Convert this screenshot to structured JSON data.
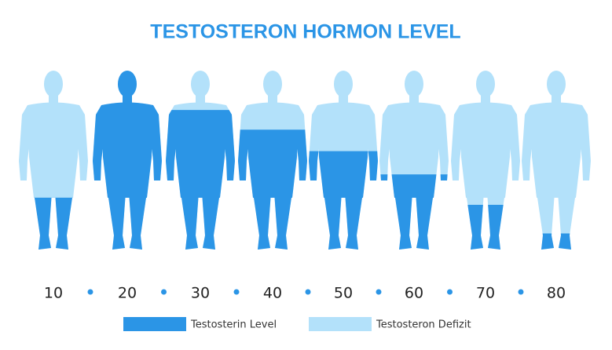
{
  "title": "TESTOSTERON HORMON LEVEL",
  "figures": [
    {
      "label": 10,
      "level": 29
    },
    {
      "label": 20,
      "level": 100
    },
    {
      "label": 30,
      "level": 78
    },
    {
      "label": 40,
      "level": 67
    },
    {
      "label": 50,
      "level": 55
    },
    {
      "label": 60,
      "level": 42
    },
    {
      "label": 70,
      "level": 25
    },
    {
      "label": 80,
      "level": 9
    }
  ],
  "legend": [
    {
      "name": "Testosterin Level",
      "color": "#2b95e6"
    },
    {
      "name": "Testosteron Defizit",
      "color": "#b3e1fa"
    }
  ]
}
